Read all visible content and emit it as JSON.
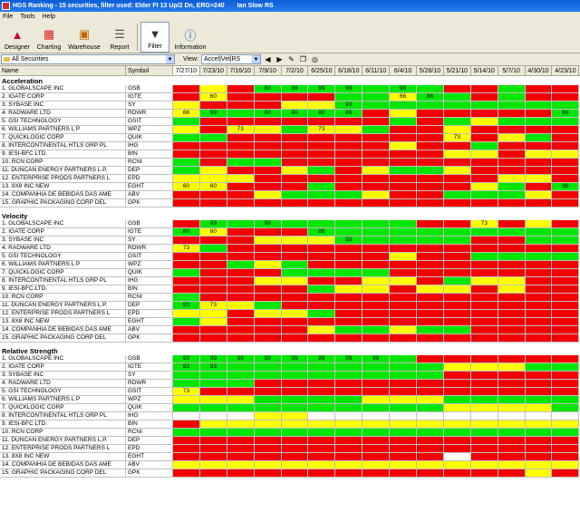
{
  "window": {
    "title": "HGS Ranking - 15 securities, filter used: Elder FI 13 Up/2 Dn, ERG>240",
    "user": "Ian Slow RS"
  },
  "menu": [
    "File",
    "Tools",
    "Help"
  ],
  "toolbar": [
    {
      "label": "Designer",
      "icon": "designer-icon"
    },
    {
      "label": "Charting",
      "icon": "charting-icon"
    },
    {
      "label": "Warehouse",
      "icon": "warehouse-icon"
    },
    {
      "label": "Report",
      "icon": "report-icon"
    },
    {
      "label": "Filter",
      "icon": "filter-icon",
      "active": true
    },
    {
      "label": "Information",
      "icon": "information-icon"
    }
  ],
  "filterbar": {
    "selection": "All Securities",
    "view_label": "View:",
    "view_value": "Accel|Vel|RS"
  },
  "columns": {
    "name": "Name",
    "symbol": "Symbol",
    "dates": [
      "7/27/10",
      "7/23/10",
      "7/16/10",
      "7/9/10",
      "7/2/10",
      "6/25/10",
      "6/18/10",
      "6/11/10",
      "6/4/10",
      "5/28/10",
      "5/21/10",
      "5/14/10",
      "5/7/10",
      "4/30/10",
      "4/23/10"
    ]
  },
  "colors": {
    "green": "#00e600",
    "yellow": "#ffff00",
    "red": "#f20000",
    "white": "#ffffff",
    "selected": "#1e50c8"
  },
  "sections": [
    {
      "title": "Acceleration",
      "rows": [
        {
          "name": "1. GLOBALSCAPE INC",
          "symbol": "GSB",
          "cells": "RYRGGGGGGGRRGRR",
          "vals": [
            "",
            "",
            "",
            "80",
            "99",
            "99",
            "99",
            "",
            "99",
            "",
            "",
            "",
            "",
            "",
            ""
          ]
        },
        {
          "name": "2. IGATE CORP",
          "symbol": "IGTE",
          "cells": "RYRRRRGGYGGRGRR",
          "vals": [
            "",
            "60",
            "",
            "",
            "",
            "",
            "",
            "",
            "66",
            "86",
            "",
            "",
            "",
            "",
            ""
          ]
        },
        {
          "name": "3. SYBASE INC",
          "symbol": "SY",
          "cells": "YRRRYYGGGGGGGGG",
          "vals": [
            "",
            "",
            "",
            "",
            "",
            "",
            "93",
            "",
            "",
            "",
            "",
            "",
            "",
            "",
            ""
          ]
        },
        {
          "name": "4. RADWARE LTD",
          "symbol": "RDWR",
          "cells": "YGGGGGGRYRRRRRG",
          "vals": [
            "66",
            "99",
            "",
            "80",
            "80",
            "80",
            "86",
            "",
            "",
            "",
            "",
            "",
            "",
            "",
            "86"
          ]
        },
        {
          "name": "5. GSI TECHNOLOGY",
          "symbol": "GSIT",
          "cells": "GRRRRRRRGRGYGGG",
          "vals": [
            "",
            "",
            "",
            "",
            "",
            "",
            "",
            "",
            "",
            "",
            "",
            "",
            "",
            "",
            ""
          ]
        },
        {
          "name": "6. WILLIAMS PARTNERS L P",
          "symbol": "WPZ",
          "cells": "YRYYGYYGRRYRRRR",
          "vals": [
            "",
            "",
            "73",
            "",
            "",
            "73",
            "",
            "",
            "",
            "",
            "",
            "",
            "",
            "",
            ""
          ]
        },
        {
          "name": "7. QUICKLOGIC CORP",
          "symbol": "QUIK",
          "cells": "GGRRRRRRRRYRYGR",
          "vals": [
            "",
            "",
            "",
            "",
            "",
            "",
            "",
            "",
            "",
            "",
            "73",
            "",
            "",
            "",
            ""
          ]
        },
        {
          "name": "8. INTERCONTINENTAL HTLS GRP PL",
          "symbol": "IHG",
          "cells": "RRRRRRRRYRRGRRR",
          "vals": [
            "",
            "",
            "",
            "",
            "",
            "",
            "",
            "",
            "",
            "",
            "",
            "",
            "",
            "",
            ""
          ]
        },
        {
          "name": "9. IESI-BFC LTD.",
          "symbol": "BIN",
          "cells": "RRRRRRRRRRYYRYY",
          "vals": [
            "",
            "",
            "",
            "",
            "",
            "",
            "",
            "",
            "",
            "",
            "",
            "",
            "",
            "",
            ""
          ]
        },
        {
          "name": "10. RCN CORP",
          "symbol": "RCNI",
          "cells": "GRGGRRRRRRRRRRR",
          "vals": [
            "",
            "",
            "",
            "",
            "",
            "",
            "",
            "",
            "",
            "",
            "",
            "",
            "",
            "",
            ""
          ]
        },
        {
          "name": "11. DUNCAN ENERGY PARTNERS L.P.",
          "symbol": "DEP",
          "cells": "GYRRYGRYGGYRRRR",
          "vals": [
            "",
            "",
            "",
            "",
            "",
            "",
            "",
            "",
            "",
            "",
            "",
            "",
            "",
            "",
            ""
          ]
        },
        {
          "name": "12. ENTERPRISE PRODS PARTNERS L",
          "symbol": "EPD",
          "cells": "YYYRRRRRRRRRYYR",
          "vals": [
            "",
            "",
            "",
            "",
            "",
            "",
            "",
            "",
            "",
            "",
            "",
            "",
            "",
            "",
            ""
          ]
        },
        {
          "name": "13. 8X8 INC NEW",
          "symbol": "EGHT",
          "cells": "YYRRRGRRRRRYGRG",
          "vals": [
            "60",
            "60",
            "",
            "",
            "",
            "",
            "",
            "",
            "",
            "",
            "",
            "",
            "",
            "",
            "86"
          ]
        },
        {
          "name": "14. COMPANHIA DE BEBIDAS DAS AME",
          "symbol": "ABV",
          "cells": "RRRYGGGYRRGGGYR",
          "vals": [
            "",
            "",
            "",
            "",
            "",
            "",
            "",
            "",
            "",
            "",
            "",
            "",
            "",
            "",
            ""
          ]
        },
        {
          "name": "15. GRAPHIC PACKAGING CORP DEL",
          "symbol": "GPK",
          "cells": "RRRRRRRRRRRRRRR",
          "vals": [
            "",
            "",
            "",
            "",
            "",
            "",
            "",
            "",
            "",
            "",
            "",
            "",
            "",
            "",
            ""
          ]
        }
      ]
    },
    {
      "title": "Velocity",
      "rows": [
        {
          "name": "1. GLOBALSCAPE INC",
          "symbol": "GSB",
          "cells": "RGGGGGGGGRRYRYR",
          "vals": [
            "",
            "99",
            "",
            "99",
            "",
            "",
            "",
            "",
            "",
            "",
            "",
            "73",
            "",
            "",
            ""
          ]
        },
        {
          "name": "2. IGATE CORP",
          "symbol": "IGTE",
          "cells": "GYRRRGGGGGGGGGG",
          "vals": [
            "80",
            "60",
            "",
            "",
            "",
            "86",
            "",
            "",
            "",
            "",
            "",
            "",
            "",
            "",
            ""
          ]
        },
        {
          "name": "3. SYBASE INC",
          "symbol": "SY",
          "cells": "RRRYYYGGGGGRRGG",
          "vals": [
            "",
            "",
            "",
            "",
            "",
            "",
            "93",
            "",
            "",
            "",
            "",
            "",
            "",
            "",
            ""
          ]
        },
        {
          "name": "4. RADWARE LTD",
          "symbol": "RDWR",
          "cells": "YGRRRRRRRRRRRRR",
          "vals": [
            "73",
            "",
            "",
            "",
            "",
            "",
            "",
            "",
            "",
            "",
            "",
            "",
            "",
            "",
            ""
          ]
        },
        {
          "name": "5. GSI TECHNOLOGY",
          "symbol": "GSIT",
          "cells": "RRRRRRRRYRRGGGG",
          "vals": [
            "",
            "",
            "",
            "",
            "",
            "",
            "",
            "",
            "",
            "",
            "",
            "",
            "",
            "",
            ""
          ]
        },
        {
          "name": "6. WILLIAMS PARTNERS L P",
          "symbol": "WPZ",
          "cells": "RRGYGRRRRRRRRRR",
          "vals": [
            "",
            "",
            "",
            "",
            "",
            "",
            "",
            "",
            "",
            "",
            "",
            "",
            "",
            "",
            ""
          ]
        },
        {
          "name": "7. QUICKLOGIC CORP",
          "symbol": "QUIK",
          "cells": "GRRRGGGGRRRRRRR",
          "vals": [
            "",
            "",
            "",
            "",
            "",
            "",
            "",
            "",
            "",
            "",
            "",
            "",
            "",
            "",
            ""
          ]
        },
        {
          "name": "8. INTERCONTINENTAL HTLS GRP PL",
          "symbol": "IHG",
          "cells": "RRRYYRRYYRGYYRR",
          "vals": [
            "",
            "",
            "",
            "",
            "",
            "",
            "",
            "",
            "",
            "",
            "",
            "",
            "",
            "",
            ""
          ]
        },
        {
          "name": "9. IESI-BFC LTD.",
          "symbol": "BIN",
          "cells": "RRRRRGYYRYYRYRR",
          "vals": [
            "",
            "",
            "",
            "",
            "",
            "",
            "",
            "",
            "",
            "",
            "",
            "",
            "",
            "",
            ""
          ]
        },
        {
          "name": "10. RCN CORP",
          "symbol": "RCNI",
          "cells": "GRRRRRRRRRRRRRR",
          "vals": [
            "",
            "",
            "",
            "",
            "",
            "",
            "",
            "",
            "",
            "",
            "",
            "",
            "",
            "",
            ""
          ]
        },
        {
          "name": "11. DUNCAN ENERGY PARTNERS L.P.",
          "symbol": "DEP",
          "cells": "GYYGRRRRRRRRRRR",
          "vals": [
            "93",
            "73",
            "",
            "",
            "",
            "",
            "",
            "",
            "",
            "",
            "",
            "",
            "",
            "",
            ""
          ]
        },
        {
          "name": "12. ENTERPRISE PRODS PARTNERS L",
          "symbol": "EPD",
          "cells": "YYRYYGRRRRRRRRR",
          "vals": [
            "",
            "",
            "",
            "",
            "",
            "",
            "",
            "",
            "",
            "",
            "",
            "",
            "",
            "",
            ""
          ]
        },
        {
          "name": "13. 8X8 INC NEW",
          "symbol": "EGHT",
          "cells": "GYRRRRRRRRRRRRR",
          "vals": [
            "",
            "",
            "",
            "",
            "",
            "",
            "",
            "",
            "",
            "",
            "",
            "",
            "",
            "",
            ""
          ]
        },
        {
          "name": "14. COMPANHIA DE BEBIDAS DAS AME",
          "symbol": "ABV",
          "cells": "RRRRRYGGYGGRRRR",
          "vals": [
            "",
            "",
            "",
            "",
            "",
            "",
            "",
            "",
            "",
            "",
            "",
            "",
            "",
            "",
            ""
          ]
        },
        {
          "name": "15. GRAPHIC PACKAGING CORP DEL",
          "symbol": "GPK",
          "cells": "RRRRRRRRRRRRRRR",
          "vals": [
            "",
            "",
            "",
            "",
            "",
            "",
            "",
            "",
            "",
            "",
            "",
            "",
            "",
            "",
            ""
          ]
        }
      ]
    },
    {
      "title": "Relative Strength",
      "rows": [
        {
          "name": "1. GLOBALSCAPE INC",
          "symbol": "GSB",
          "cells": "GGGGGGGGGRRRRRR",
          "vals": [
            "99",
            "99",
            "99",
            "99",
            "99",
            "99",
            "99",
            "99",
            "",
            "",
            "",
            "",
            "",
            "",
            ""
          ]
        },
        {
          "name": "2. IGATE CORP",
          "symbol": "IGTE",
          "cells": "GGGGGGGGGGYYYGG",
          "vals": [
            "93",
            "93",
            "",
            "",
            "",
            "",
            "",
            "",
            "",
            "",
            "",
            "",
            "",
            "",
            ""
          ]
        },
        {
          "name": "3. SYBASE INC",
          "symbol": "SY",
          "cells": "GGGGGGGGGGRRRRR",
          "vals": [
            "",
            "",
            "",
            "",
            "",
            "",
            "",
            "",
            "",
            "",
            "",
            "",
            "",
            "",
            ""
          ]
        },
        {
          "name": "4. RADWARE LTD",
          "symbol": "RDWR",
          "cells": "GGGRRRRRRRRRRRR",
          "vals": [
            "",
            "",
            "",
            "",
            "",
            "",
            "",
            "",
            "",
            "",
            "",
            "",
            "",
            "",
            ""
          ]
        },
        {
          "name": "5. GSI TECHNOLOGY",
          "symbol": "GSIT",
          "cells": "YRRRRRRRRRRRRRR",
          "vals": [
            "73",
            "",
            "",
            "",
            "",
            "",
            "",
            "",
            "",
            "",
            "",
            "",
            "",
            "",
            ""
          ]
        },
        {
          "name": "6. WILLIAMS PARTNERS L P",
          "symbol": "WPZ",
          "cells": "YYYGGGGYYYGGGGG",
          "vals": [
            "",
            "",
            "",
            "",
            "",
            "",
            "",
            "",
            "",
            "",
            "",
            "",
            "",
            "",
            ""
          ]
        },
        {
          "name": "7. QUICKLOGIC CORP",
          "symbol": "QUIK",
          "cells": "GGGGGGGGGGYYYYG",
          "vals": [
            "",
            "",
            "",
            "",
            "",
            "",
            "",
            "",
            "",
            "",
            "",
            "",
            "",
            "",
            ""
          ]
        },
        {
          "name": "8. INTERCONTINENTAL HTLS GRP PL",
          "symbol": "IHG",
          "cells": "WWWYYWWWWWWWWWW",
          "vals": [
            "",
            "",
            "",
            "",
            "",
            "",
            "",
            "",
            "",
            "",
            "",
            "",
            "",
            "",
            ""
          ]
        },
        {
          "name": "9. IESI-BFC LTD.",
          "symbol": "BIN",
          "cells": "RYYYYYYYYYYYYYY",
          "vals": [
            "",
            "",
            "",
            "",
            "",
            "",
            "",
            "",
            "",
            "",
            "",
            "",
            "",
            "",
            ""
          ]
        },
        {
          "name": "10. RCN CORP",
          "symbol": "RCNI",
          "cells": "GGGGGGGGGGGGGGG",
          "vals": [
            "",
            "",
            "",
            "",
            "",
            "",
            "",
            "",
            "",
            "",
            "",
            "",
            "",
            "",
            ""
          ]
        },
        {
          "name": "11. DUNCAN ENERGY PARTNERS L.P.",
          "symbol": "DEP",
          "cells": "RRRRRRRRRRRRRRR",
          "vals": [
            "",
            "",
            "",
            "",
            "",
            "",
            "",
            "",
            "",
            "",
            "",
            "",
            "",
            "",
            ""
          ]
        },
        {
          "name": "12. ENTERPRISE PRODS PARTNERS L",
          "symbol": "EPD",
          "cells": "RRRRRRRRRRRRRRR",
          "vals": [
            "",
            "",
            "",
            "",
            "",
            "",
            "",
            "",
            "",
            "",
            "",
            "",
            "",
            "",
            ""
          ]
        },
        {
          "name": "13. 8X8 INC NEW",
          "symbol": "EGHT",
          "cells": "RRRRRRRRRRWRRRR",
          "vals": [
            "",
            "",
            "",
            "",
            "",
            "",
            "",
            "",
            "",
            "",
            "",
            "",
            "",
            "",
            ""
          ]
        },
        {
          "name": "14. COMPANHIA DE BEBIDAS DAS AME",
          "symbol": "ABV",
          "cells": "YYYYYYYYYYYYYYY",
          "vals": [
            "",
            "",
            "",
            "",
            "",
            "",
            "",
            "",
            "",
            "",
            "",
            "",
            "",
            "",
            ""
          ]
        },
        {
          "name": "15. GRAPHIC PACKAGING CORP DEL",
          "symbol": "GPK",
          "cells": "RRRRRRRRRRRRRYR",
          "vals": [
            "",
            "",
            "",
            "",
            "",
            "",
            "",
            "",
            "",
            "",
            "",
            "",
            "",
            "",
            ""
          ]
        }
      ]
    }
  ]
}
